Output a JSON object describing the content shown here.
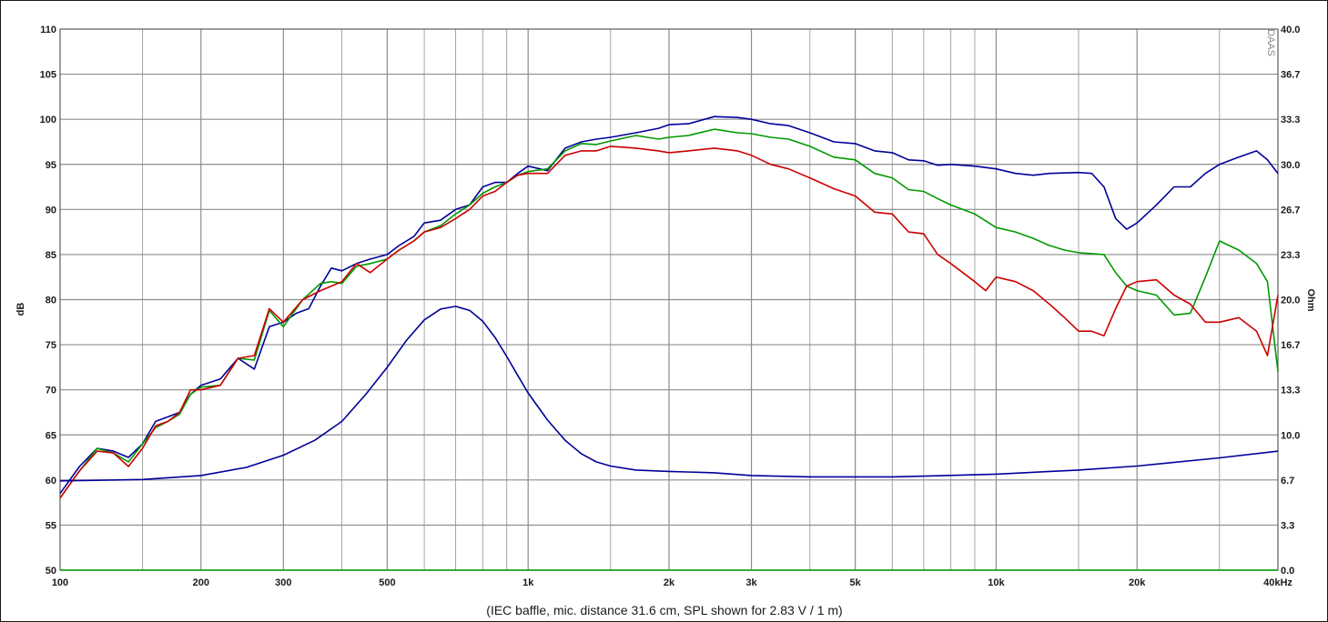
{
  "chart_data": {
    "type": "line",
    "x_scale": "log",
    "xlim": [
      100,
      40000
    ],
    "ylim": [
      50,
      110
    ],
    "y2lim": [
      0,
      40
    ],
    "ylabel": "dB",
    "y2label": "Ohm",
    "grid": true,
    "legend": "none",
    "x_major_ticks": [
      100,
      200,
      300,
      500,
      1000,
      2000,
      3000,
      5000,
      10000,
      20000,
      40000
    ],
    "x_tick_labels": [
      "100",
      "200",
      "300",
      "500",
      "1k",
      "2k",
      "3k",
      "5k",
      "10k",
      "20k",
      "40kHz"
    ],
    "x_minor_ticks": [
      150,
      400,
      600,
      700,
      800,
      900,
      1500,
      4000,
      6000,
      7000,
      8000,
      9000,
      15000,
      30000
    ],
    "y_ticks": [
      50,
      55,
      60,
      65,
      70,
      75,
      80,
      85,
      90,
      95,
      100,
      105,
      110
    ],
    "y_tick_labels": [
      "50",
      "55",
      "60",
      "65",
      "70",
      "75",
      "80",
      "85",
      "90",
      "95",
      "100",
      "105",
      "110"
    ],
    "y2_tick_labels": [
      "0.0",
      "3.3",
      "6.7",
      "10.0",
      "13.3",
      "16.7",
      "20.0",
      "23.3",
      "26.7",
      "30.0",
      "33.3",
      "36.7",
      "40.0"
    ],
    "footer": "(IEC baffle, mic. distance 31.6 cm, SPL shown for 2.83 V / 1 m)",
    "brand": "DAAS",
    "series": [
      {
        "color": "#000099",
        "axis": "left",
        "points": [
          [
            100,
            58.5
          ],
          [
            110,
            61.5
          ],
          [
            120,
            63.5
          ],
          [
            130,
            63.2
          ],
          [
            140,
            62.5
          ],
          [
            150,
            64
          ],
          [
            160,
            66.5
          ],
          [
            170,
            67
          ],
          [
            180,
            67.5
          ],
          [
            190,
            69.5
          ],
          [
            200,
            70.5
          ],
          [
            220,
            71.2
          ],
          [
            240,
            73.5
          ],
          [
            260,
            72.3
          ],
          [
            280,
            77
          ],
          [
            300,
            77.5
          ],
          [
            320,
            78.5
          ],
          [
            340,
            79
          ],
          [
            360,
            81.5
          ],
          [
            380,
            83.5
          ],
          [
            400,
            83.2
          ],
          [
            430,
            84
          ],
          [
            460,
            84.5
          ],
          [
            500,
            85
          ],
          [
            530,
            86
          ],
          [
            570,
            87
          ],
          [
            600,
            88.5
          ],
          [
            650,
            88.8
          ],
          [
            700,
            90
          ],
          [
            750,
            90.5
          ],
          [
            800,
            92.5
          ],
          [
            850,
            93
          ],
          [
            900,
            93
          ],
          [
            950,
            94
          ],
          [
            1000,
            94.8
          ],
          [
            1100,
            94.3
          ],
          [
            1200,
            96.8
          ],
          [
            1300,
            97.5
          ],
          [
            1400,
            97.8
          ],
          [
            1500,
            98
          ],
          [
            1700,
            98.5
          ],
          [
            1900,
            99
          ],
          [
            2000,
            99.4
          ],
          [
            2200,
            99.5
          ],
          [
            2500,
            100.3
          ],
          [
            2800,
            100.2
          ],
          [
            3000,
            100
          ],
          [
            3300,
            99.5
          ],
          [
            3600,
            99.3
          ],
          [
            4000,
            98.5
          ],
          [
            4500,
            97.5
          ],
          [
            5000,
            97.3
          ],
          [
            5500,
            96.5
          ],
          [
            6000,
            96.3
          ],
          [
            6500,
            95.5
          ],
          [
            7000,
            95.4
          ],
          [
            7500,
            94.9
          ],
          [
            8000,
            95
          ],
          [
            9000,
            94.8
          ],
          [
            10000,
            94.5
          ],
          [
            11000,
            94
          ],
          [
            12000,
            93.8
          ],
          [
            13000,
            94
          ],
          [
            15000,
            94.1
          ],
          [
            16000,
            94
          ],
          [
            17000,
            92.5
          ],
          [
            18000,
            89
          ],
          [
            19000,
            87.8
          ],
          [
            20000,
            88.5
          ],
          [
            22000,
            90.5
          ],
          [
            24000,
            92.5
          ],
          [
            26000,
            92.5
          ],
          [
            28000,
            94
          ],
          [
            30000,
            95
          ],
          [
            33000,
            95.8
          ],
          [
            36000,
            96.5
          ],
          [
            38000,
            95.5
          ],
          [
            40000,
            94
          ]
        ]
      },
      {
        "color": "#009900",
        "axis": "left",
        "points": [
          [
            100,
            58
          ],
          [
            110,
            61
          ],
          [
            120,
            63.5
          ],
          [
            130,
            63
          ],
          [
            140,
            62
          ],
          [
            150,
            64
          ],
          [
            160,
            65.8
          ],
          [
            170,
            66.5
          ],
          [
            180,
            67.3
          ],
          [
            190,
            69.5
          ],
          [
            200,
            70.3
          ],
          [
            220,
            70.5
          ],
          [
            240,
            73.5
          ],
          [
            260,
            73.3
          ],
          [
            280,
            78.8
          ],
          [
            300,
            77
          ],
          [
            330,
            80
          ],
          [
            360,
            81.8
          ],
          [
            380,
            82
          ],
          [
            400,
            81.8
          ],
          [
            430,
            83.7
          ],
          [
            460,
            84
          ],
          [
            500,
            84.5
          ],
          [
            530,
            85.5
          ],
          [
            570,
            86.5
          ],
          [
            600,
            87.5
          ],
          [
            650,
            88.2
          ],
          [
            700,
            89.5
          ],
          [
            750,
            90.5
          ],
          [
            800,
            91.8
          ],
          [
            850,
            92.5
          ],
          [
            900,
            93
          ],
          [
            950,
            93.8
          ],
          [
            1000,
            94.2
          ],
          [
            1100,
            94.5
          ],
          [
            1200,
            96.5
          ],
          [
            1300,
            97.3
          ],
          [
            1400,
            97.2
          ],
          [
            1500,
            97.6
          ],
          [
            1700,
            98.2
          ],
          [
            1900,
            97.8
          ],
          [
            2000,
            98
          ],
          [
            2200,
            98.2
          ],
          [
            2500,
            98.9
          ],
          [
            2800,
            98.5
          ],
          [
            3000,
            98.4
          ],
          [
            3300,
            98
          ],
          [
            3600,
            97.8
          ],
          [
            4000,
            97
          ],
          [
            4500,
            95.8
          ],
          [
            5000,
            95.5
          ],
          [
            5500,
            94
          ],
          [
            6000,
            93.5
          ],
          [
            6500,
            92.2
          ],
          [
            7000,
            92
          ],
          [
            7500,
            91.2
          ],
          [
            8000,
            90.5
          ],
          [
            9000,
            89.5
          ],
          [
            10000,
            88
          ],
          [
            11000,
            87.5
          ],
          [
            12000,
            86.8
          ],
          [
            13000,
            86
          ],
          [
            14000,
            85.5
          ],
          [
            15000,
            85.2
          ],
          [
            16000,
            85.1
          ],
          [
            17000,
            85
          ],
          [
            18000,
            83
          ],
          [
            19000,
            81.5
          ],
          [
            20000,
            81
          ],
          [
            22000,
            80.5
          ],
          [
            24000,
            78.3
          ],
          [
            26000,
            78.5
          ],
          [
            28000,
            82.5
          ],
          [
            30000,
            86.5
          ],
          [
            33000,
            85.5
          ],
          [
            36000,
            84
          ],
          [
            38000,
            82
          ],
          [
            40000,
            72
          ]
        ]
      },
      {
        "color": "#cc0000",
        "axis": "left",
        "points": [
          [
            100,
            58
          ],
          [
            110,
            61
          ],
          [
            120,
            63.2
          ],
          [
            130,
            63
          ],
          [
            140,
            61.5
          ],
          [
            150,
            63.5
          ],
          [
            160,
            66
          ],
          [
            170,
            66.5
          ],
          [
            180,
            67.5
          ],
          [
            190,
            70
          ],
          [
            200,
            70
          ],
          [
            220,
            70.5
          ],
          [
            240,
            73.5
          ],
          [
            260,
            73.8
          ],
          [
            280,
            79
          ],
          [
            300,
            77.5
          ],
          [
            330,
            80
          ],
          [
            360,
            81
          ],
          [
            380,
            81.5
          ],
          [
            400,
            82
          ],
          [
            430,
            84
          ],
          [
            460,
            83
          ],
          [
            500,
            84.5
          ],
          [
            530,
            85.5
          ],
          [
            570,
            86.5
          ],
          [
            600,
            87.5
          ],
          [
            650,
            88
          ],
          [
            700,
            89
          ],
          [
            750,
            90
          ],
          [
            800,
            91.5
          ],
          [
            850,
            92
          ],
          [
            900,
            93
          ],
          [
            950,
            93.8
          ],
          [
            1000,
            94
          ],
          [
            1100,
            94
          ],
          [
            1200,
            96
          ],
          [
            1300,
            96.5
          ],
          [
            1400,
            96.5
          ],
          [
            1500,
            97
          ],
          [
            1700,
            96.8
          ],
          [
            1900,
            96.5
          ],
          [
            2000,
            96.3
          ],
          [
            2200,
            96.5
          ],
          [
            2500,
            96.8
          ],
          [
            2800,
            96.5
          ],
          [
            3000,
            96
          ],
          [
            3300,
            95
          ],
          [
            3600,
            94.5
          ],
          [
            4000,
            93.5
          ],
          [
            4500,
            92.3
          ],
          [
            5000,
            91.5
          ],
          [
            5500,
            89.7
          ],
          [
            6000,
            89.5
          ],
          [
            6500,
            87.5
          ],
          [
            7000,
            87.3
          ],
          [
            7500,
            85
          ],
          [
            8000,
            84
          ],
          [
            9000,
            82
          ],
          [
            9500,
            81
          ],
          [
            10000,
            82.5
          ],
          [
            11000,
            82
          ],
          [
            12000,
            81
          ],
          [
            13000,
            79.5
          ],
          [
            14000,
            78
          ],
          [
            15000,
            76.5
          ],
          [
            16000,
            76.5
          ],
          [
            17000,
            76
          ],
          [
            18000,
            79
          ],
          [
            19000,
            81.5
          ],
          [
            20000,
            82
          ],
          [
            22000,
            82.2
          ],
          [
            24000,
            80.5
          ],
          [
            26000,
            79.5
          ],
          [
            28000,
            77.5
          ],
          [
            30000,
            77.5
          ],
          [
            33000,
            78
          ],
          [
            36000,
            76.5
          ],
          [
            38000,
            73.8
          ],
          [
            40000,
            80.5
          ]
        ]
      },
      {
        "color": "#000099",
        "axis": "right",
        "points": [
          [
            100,
            6.6
          ],
          [
            150,
            6.7
          ],
          [
            200,
            7
          ],
          [
            250,
            7.6
          ],
          [
            300,
            8.5
          ],
          [
            350,
            9.6
          ],
          [
            400,
            11
          ],
          [
            450,
            13
          ],
          [
            500,
            15
          ],
          [
            550,
            17
          ],
          [
            600,
            18.5
          ],
          [
            650,
            19.3
          ],
          [
            700,
            19.5
          ],
          [
            750,
            19.2
          ],
          [
            800,
            18.4
          ],
          [
            850,
            17.2
          ],
          [
            900,
            15.8
          ],
          [
            950,
            14.4
          ],
          [
            1000,
            13.1
          ],
          [
            1100,
            11.1
          ],
          [
            1200,
            9.6
          ],
          [
            1300,
            8.6
          ],
          [
            1400,
            8
          ],
          [
            1500,
            7.7
          ],
          [
            1700,
            7.4
          ],
          [
            2000,
            7.3
          ],
          [
            2500,
            7.2
          ],
          [
            3000,
            7
          ],
          [
            4000,
            6.9
          ],
          [
            5000,
            6.9
          ],
          [
            6000,
            6.9
          ],
          [
            7000,
            6.95
          ],
          [
            10000,
            7.1
          ],
          [
            15000,
            7.4
          ],
          [
            20000,
            7.7
          ],
          [
            30000,
            8.3
          ],
          [
            40000,
            8.8
          ]
        ]
      }
    ]
  }
}
